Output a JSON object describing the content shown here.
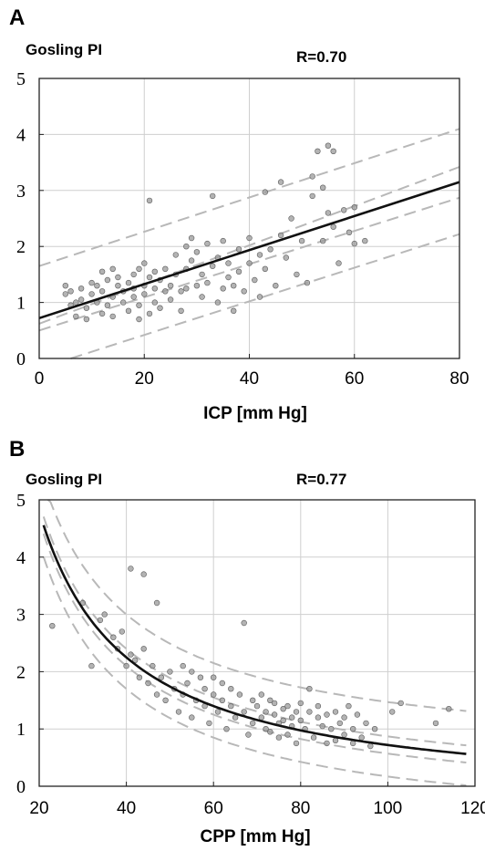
{
  "chart_data": [
    {
      "panel": "A",
      "type": "scatter",
      "ylabel": "Gosling PI",
      "annotation": "R=0.70",
      "xlabel": "ICP [mm Hg]",
      "xlim": [
        0,
        80
      ],
      "ylim": [
        0,
        5
      ],
      "xticks": [
        0,
        20,
        40,
        60,
        80
      ],
      "yticks": [
        0,
        1,
        2,
        3,
        4,
        5
      ],
      "grid": true,
      "fit_line": [
        [
          0,
          0.72
        ],
        [
          80,
          3.15
        ]
      ],
      "bands": [
        [
          [
            0,
            1.65
          ],
          [
            80,
            4.1
          ]
        ],
        [
          [
            0,
            0.62
          ],
          [
            80,
            3.42
          ]
        ],
        [
          [
            0,
            0.5
          ],
          [
            80,
            2.87
          ]
        ],
        [
          [
            6,
            0
          ],
          [
            80,
            2.22
          ]
        ]
      ],
      "points": [
        [
          5,
          1.3
        ],
        [
          5,
          1.15
        ],
        [
          6,
          0.95
        ],
        [
          6,
          1.2
        ],
        [
          7,
          1.0
        ],
        [
          7,
          0.75
        ],
        [
          8,
          1.25
        ],
        [
          8,
          1.05
        ],
        [
          9,
          0.7
        ],
        [
          9,
          0.9
        ],
        [
          10,
          1.15
        ],
        [
          10,
          1.35
        ],
        [
          11,
          1.0
        ],
        [
          11,
          1.3
        ],
        [
          12,
          0.8
        ],
        [
          12,
          1.55
        ],
        [
          12,
          1.2
        ],
        [
          13,
          1.4
        ],
        [
          13,
          0.95
        ],
        [
          14,
          1.6
        ],
        [
          14,
          1.1
        ],
        [
          14,
          0.75
        ],
        [
          15,
          1.3
        ],
        [
          15,
          1.45
        ],
        [
          16,
          1.0
        ],
        [
          16,
          1.2
        ],
        [
          17,
          1.35
        ],
        [
          17,
          0.85
        ],
        [
          18,
          1.5
        ],
        [
          18,
          1.1
        ],
        [
          18,
          1.25
        ],
        [
          19,
          1.6
        ],
        [
          19,
          0.95
        ],
        [
          19,
          0.7
        ],
        [
          20,
          1.3
        ],
        [
          20,
          1.7
        ],
        [
          20,
          1.15
        ],
        [
          21,
          1.45
        ],
        [
          21,
          0.8
        ],
        [
          21,
          2.82
        ],
        [
          22,
          1.55
        ],
        [
          22,
          1.25
        ],
        [
          22,
          1.0
        ],
        [
          23,
          1.4
        ],
        [
          23,
          0.9
        ],
        [
          24,
          1.2
        ],
        [
          24,
          1.6
        ],
        [
          25,
          1.3
        ],
        [
          25,
          1.05
        ],
        [
          26,
          1.85
        ],
        [
          26,
          1.5
        ],
        [
          27,
          1.2
        ],
        [
          27,
          0.85
        ],
        [
          28,
          2.0
        ],
        [
          28,
          1.25
        ],
        [
          28,
          1.6
        ],
        [
          29,
          1.75
        ],
        [
          29,
          2.15
        ],
        [
          30,
          1.3
        ],
        [
          30,
          1.9
        ],
        [
          31,
          1.5
        ],
        [
          31,
          1.1
        ],
        [
          32,
          2.05
        ],
        [
          32,
          1.35
        ],
        [
          33,
          2.9
        ],
        [
          33,
          1.65
        ],
        [
          34,
          1.0
        ],
        [
          34,
          1.8
        ],
        [
          35,
          1.25
        ],
        [
          35,
          2.1
        ],
        [
          36,
          1.45
        ],
        [
          36,
          1.7
        ],
        [
          37,
          0.85
        ],
        [
          37,
          1.3
        ],
        [
          38,
          1.55
        ],
        [
          38,
          1.95
        ],
        [
          39,
          1.2
        ],
        [
          40,
          1.7
        ],
        [
          40,
          2.15
        ],
        [
          41,
          1.4
        ],
        [
          42,
          1.1
        ],
        [
          42,
          1.85
        ],
        [
          43,
          2.97
        ],
        [
          43,
          1.6
        ],
        [
          44,
          1.95
        ],
        [
          45,
          1.3
        ],
        [
          46,
          2.2
        ],
        [
          46,
          3.15
        ],
        [
          47,
          1.8
        ],
        [
          48,
          2.5
        ],
        [
          49,
          1.5
        ],
        [
          50,
          2.1
        ],
        [
          51,
          1.35
        ],
        [
          52,
          2.9
        ],
        [
          52,
          3.25
        ],
        [
          53,
          3.7
        ],
        [
          54,
          2.1
        ],
        [
          54,
          3.05
        ],
        [
          55,
          2.6
        ],
        [
          55,
          3.8
        ],
        [
          56,
          2.35
        ],
        [
          56,
          3.7
        ],
        [
          57,
          1.7
        ],
        [
          58,
          2.65
        ],
        [
          59,
          2.25
        ],
        [
          60,
          2.05
        ],
        [
          60,
          2.7
        ],
        [
          62,
          2.1
        ]
      ]
    },
    {
      "panel": "B",
      "type": "scatter",
      "ylabel": "Gosling PI",
      "annotation": "R=0.77",
      "xlabel": "CPP [mm Hg]",
      "xlim": [
        20,
        120
      ],
      "ylim": [
        0,
        5
      ],
      "xticks": [
        20,
        40,
        60,
        80,
        100,
        120
      ],
      "yticks": [
        0,
        1,
        2,
        3,
        4,
        5
      ],
      "grid": true,
      "fit_curve": {
        "x_from": 21,
        "x_to": 118,
        "a": -0.3,
        "b": 102
      },
      "bands": [
        {
          "x_from": 22,
          "x_to": 118,
          "a": 0.45,
          "b": 102
        },
        {
          "x_from": 21,
          "x_to": 118,
          "a": -0.15,
          "b": 102
        },
        {
          "x_from": 21,
          "x_to": 118,
          "a": -0.45,
          "b": 102
        },
        {
          "x_from": 21,
          "x_to": 118,
          "a": -0.85,
          "b": 102
        }
      ],
      "points": [
        [
          23,
          2.8
        ],
        [
          30,
          3.2
        ],
        [
          32,
          2.1
        ],
        [
          34,
          2.9
        ],
        [
          35,
          3.0
        ],
        [
          37,
          2.6
        ],
        [
          38,
          2.4
        ],
        [
          39,
          2.7
        ],
        [
          40,
          2.1
        ],
        [
          41,
          2.3
        ],
        [
          41,
          3.8
        ],
        [
          42,
          2.2
        ],
        [
          43,
          1.9
        ],
        [
          44,
          3.7
        ],
        [
          44,
          2.4
        ],
        [
          45,
          1.8
        ],
        [
          46,
          2.1
        ],
        [
          47,
          3.2
        ],
        [
          47,
          1.6
        ],
        [
          48,
          1.9
        ],
        [
          49,
          1.5
        ],
        [
          50,
          2.0
        ],
        [
          51,
          1.7
        ],
        [
          52,
          1.3
        ],
        [
          53,
          2.1
        ],
        [
          53,
          1.6
        ],
        [
          54,
          1.8
        ],
        [
          55,
          1.2
        ],
        [
          55,
          2.0
        ],
        [
          56,
          1.5
        ],
        [
          57,
          1.9
        ],
        [
          58,
          1.4
        ],
        [
          58,
          1.7
        ],
        [
          59,
          1.1
        ],
        [
          60,
          1.6
        ],
        [
          60,
          1.9
        ],
        [
          61,
          1.3
        ],
        [
          62,
          1.8
        ],
        [
          62,
          1.5
        ],
        [
          63,
          1.0
        ],
        [
          64,
          1.7
        ],
        [
          64,
          1.4
        ],
        [
          65,
          1.2
        ],
        [
          66,
          1.6
        ],
        [
          67,
          2.85
        ],
        [
          67,
          1.3
        ],
        [
          68,
          0.9
        ],
        [
          69,
          1.5
        ],
        [
          69,
          1.1
        ],
        [
          70,
          1.4
        ],
        [
          71,
          1.2
        ],
        [
          71,
          1.6
        ],
        [
          72,
          1.0
        ],
        [
          72,
          1.3
        ],
        [
          73,
          1.5
        ],
        [
          73,
          0.95
        ],
        [
          74,
          1.25
        ],
        [
          74,
          1.45
        ],
        [
          75,
          1.1
        ],
        [
          75,
          0.85
        ],
        [
          76,
          1.35
        ],
        [
          76,
          1.15
        ],
        [
          77,
          0.9
        ],
        [
          77,
          1.4
        ],
        [
          78,
          1.2
        ],
        [
          78,
          1.05
        ],
        [
          79,
          1.3
        ],
        [
          79,
          0.75
        ],
        [
          80,
          1.15
        ],
        [
          80,
          1.45
        ],
        [
          81,
          1.0
        ],
        [
          82,
          1.3
        ],
        [
          82,
          1.7
        ],
        [
          83,
          0.85
        ],
        [
          84,
          1.2
        ],
        [
          84,
          1.4
        ],
        [
          85,
          1.05
        ],
        [
          86,
          0.75
        ],
        [
          86,
          1.25
        ],
        [
          87,
          1.0
        ],
        [
          88,
          1.3
        ],
        [
          88,
          0.8
        ],
        [
          89,
          1.1
        ],
        [
          90,
          0.9
        ],
        [
          90,
          1.2
        ],
        [
          91,
          1.4
        ],
        [
          92,
          1.0
        ],
        [
          92,
          0.75
        ],
        [
          93,
          1.25
        ],
        [
          94,
          0.85
        ],
        [
          95,
          1.1
        ],
        [
          96,
          0.7
        ],
        [
          97,
          1.0
        ],
        [
          101,
          1.3
        ],
        [
          103,
          1.45
        ],
        [
          111,
          1.1
        ],
        [
          114,
          1.35
        ]
      ]
    }
  ]
}
